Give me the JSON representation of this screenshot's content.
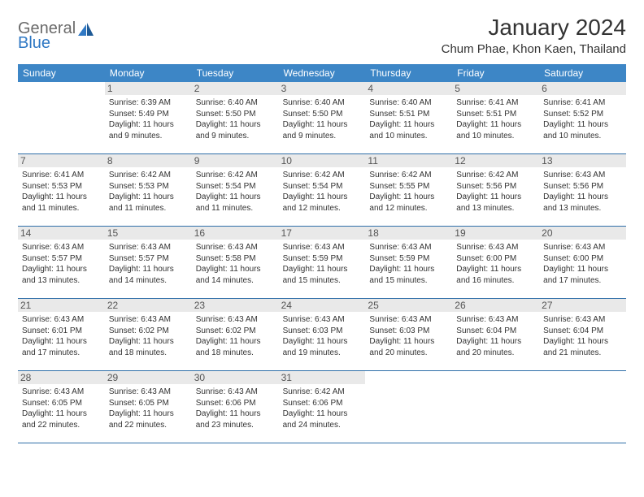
{
  "brand": {
    "word1": "General",
    "word2": "Blue"
  },
  "title": "January 2024",
  "location": "Chum Phae, Khon Kaen, Thailand",
  "colors": {
    "header_bg": "#3d86c6",
    "header_text": "#ffffff",
    "daynum_bg": "#e9e9e9",
    "rule": "#2f6fa8",
    "brand_gray": "#6a6a6a",
    "brand_blue": "#2f78c4"
  },
  "weekdays": [
    "Sunday",
    "Monday",
    "Tuesday",
    "Wednesday",
    "Thursday",
    "Friday",
    "Saturday"
  ],
  "weeks": [
    [
      null,
      {
        "n": "1",
        "sr": "6:39 AM",
        "ss": "5:49 PM",
        "dl": "11 hours and 9 minutes."
      },
      {
        "n": "2",
        "sr": "6:40 AM",
        "ss": "5:50 PM",
        "dl": "11 hours and 9 minutes."
      },
      {
        "n": "3",
        "sr": "6:40 AM",
        "ss": "5:50 PM",
        "dl": "11 hours and 9 minutes."
      },
      {
        "n": "4",
        "sr": "6:40 AM",
        "ss": "5:51 PM",
        "dl": "11 hours and 10 minutes."
      },
      {
        "n": "5",
        "sr": "6:41 AM",
        "ss": "5:51 PM",
        "dl": "11 hours and 10 minutes."
      },
      {
        "n": "6",
        "sr": "6:41 AM",
        "ss": "5:52 PM",
        "dl": "11 hours and 10 minutes."
      }
    ],
    [
      {
        "n": "7",
        "sr": "6:41 AM",
        "ss": "5:53 PM",
        "dl": "11 hours and 11 minutes."
      },
      {
        "n": "8",
        "sr": "6:42 AM",
        "ss": "5:53 PM",
        "dl": "11 hours and 11 minutes."
      },
      {
        "n": "9",
        "sr": "6:42 AM",
        "ss": "5:54 PM",
        "dl": "11 hours and 11 minutes."
      },
      {
        "n": "10",
        "sr": "6:42 AM",
        "ss": "5:54 PM",
        "dl": "11 hours and 12 minutes."
      },
      {
        "n": "11",
        "sr": "6:42 AM",
        "ss": "5:55 PM",
        "dl": "11 hours and 12 minutes."
      },
      {
        "n": "12",
        "sr": "6:42 AM",
        "ss": "5:56 PM",
        "dl": "11 hours and 13 minutes."
      },
      {
        "n": "13",
        "sr": "6:43 AM",
        "ss": "5:56 PM",
        "dl": "11 hours and 13 minutes."
      }
    ],
    [
      {
        "n": "14",
        "sr": "6:43 AM",
        "ss": "5:57 PM",
        "dl": "11 hours and 13 minutes."
      },
      {
        "n": "15",
        "sr": "6:43 AM",
        "ss": "5:57 PM",
        "dl": "11 hours and 14 minutes."
      },
      {
        "n": "16",
        "sr": "6:43 AM",
        "ss": "5:58 PM",
        "dl": "11 hours and 14 minutes."
      },
      {
        "n": "17",
        "sr": "6:43 AM",
        "ss": "5:59 PM",
        "dl": "11 hours and 15 minutes."
      },
      {
        "n": "18",
        "sr": "6:43 AM",
        "ss": "5:59 PM",
        "dl": "11 hours and 15 minutes."
      },
      {
        "n": "19",
        "sr": "6:43 AM",
        "ss": "6:00 PM",
        "dl": "11 hours and 16 minutes."
      },
      {
        "n": "20",
        "sr": "6:43 AM",
        "ss": "6:00 PM",
        "dl": "11 hours and 17 minutes."
      }
    ],
    [
      {
        "n": "21",
        "sr": "6:43 AM",
        "ss": "6:01 PM",
        "dl": "11 hours and 17 minutes."
      },
      {
        "n": "22",
        "sr": "6:43 AM",
        "ss": "6:02 PM",
        "dl": "11 hours and 18 minutes."
      },
      {
        "n": "23",
        "sr": "6:43 AM",
        "ss": "6:02 PM",
        "dl": "11 hours and 18 minutes."
      },
      {
        "n": "24",
        "sr": "6:43 AM",
        "ss": "6:03 PM",
        "dl": "11 hours and 19 minutes."
      },
      {
        "n": "25",
        "sr": "6:43 AM",
        "ss": "6:03 PM",
        "dl": "11 hours and 20 minutes."
      },
      {
        "n": "26",
        "sr": "6:43 AM",
        "ss": "6:04 PM",
        "dl": "11 hours and 20 minutes."
      },
      {
        "n": "27",
        "sr": "6:43 AM",
        "ss": "6:04 PM",
        "dl": "11 hours and 21 minutes."
      }
    ],
    [
      {
        "n": "28",
        "sr": "6:43 AM",
        "ss": "6:05 PM",
        "dl": "11 hours and 22 minutes."
      },
      {
        "n": "29",
        "sr": "6:43 AM",
        "ss": "6:05 PM",
        "dl": "11 hours and 22 minutes."
      },
      {
        "n": "30",
        "sr": "6:43 AM",
        "ss": "6:06 PM",
        "dl": "11 hours and 23 minutes."
      },
      {
        "n": "31",
        "sr": "6:42 AM",
        "ss": "6:06 PM",
        "dl": "11 hours and 24 minutes."
      },
      null,
      null,
      null
    ]
  ],
  "labels": {
    "sunrise": "Sunrise: ",
    "sunset": "Sunset: ",
    "daylight": "Daylight: "
  }
}
